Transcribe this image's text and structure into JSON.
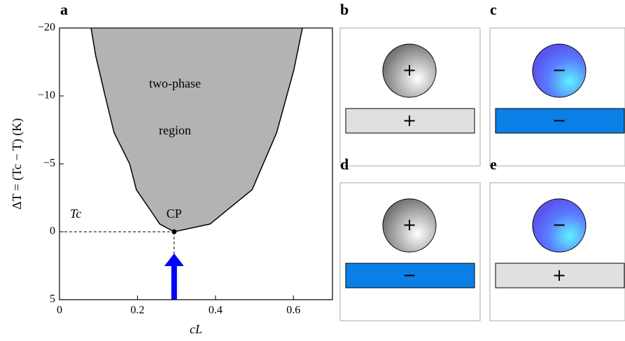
{
  "chart_data": {
    "type": "area",
    "panel_label": "a",
    "xlabel": "cL",
    "ylabel": "ΔT = (Tc − T) (K)",
    "x": [
      0.081,
      0.093,
      0.117,
      0.14,
      0.18,
      0.197,
      0.233,
      0.257,
      0.294,
      0.386,
      0.494,
      0.557,
      0.601,
      0.623
    ],
    "y": [
      -20,
      -15.9,
      -10,
      -7.3,
      -5,
      -3.1,
      -1.6,
      -0.57,
      0,
      -0.57,
      -3.1,
      -7.3,
      -13.8,
      -20
    ],
    "color": "#b3b3b3",
    "xlim": [
      0,
      0.7
    ],
    "xticks": [
      0,
      0.2,
      0.4,
      0.6
    ],
    "ylim": [
      5,
      -20
    ],
    "yticks": [
      {
        "value": 5,
        "label": "5"
      },
      {
        "value": 0,
        "label": "0"
      },
      {
        "value": -5,
        "label": "−5"
      },
      {
        "value": -10,
        "label": "−10"
      },
      {
        "value": -20,
        "label": "−20"
      }
    ],
    "region_label": [
      "two-phase",
      "region"
    ],
    "critical_point": {
      "label": "CP",
      "x": 0.294,
      "y": 0
    },
    "tc_label": "Tc"
  },
  "panels": [
    {
      "label": "b",
      "particle": "+",
      "substrate": "+"
    },
    {
      "label": "c",
      "particle": "−",
      "substrate": "−"
    },
    {
      "label": "d",
      "particle": "+",
      "substrate": "−"
    },
    {
      "label": "e",
      "particle": "−",
      "substrate": "+"
    }
  ]
}
